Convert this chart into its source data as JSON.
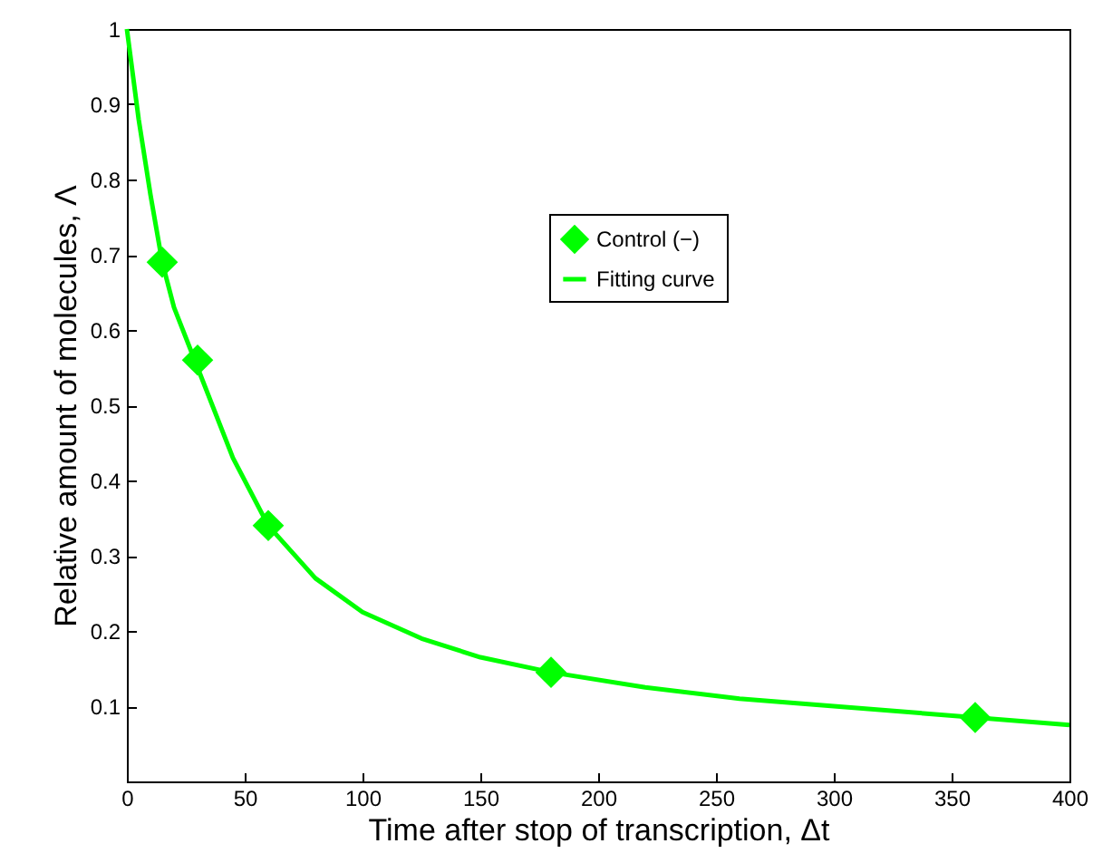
{
  "chart_data": {
    "type": "scatter",
    "xlabel": "Time after stop of transcription, Δt",
    "ylabel": "Relative amount of molecules, Λ",
    "xlim": [
      0,
      400
    ],
    "ylim": [
      0,
      1
    ],
    "xticks": [
      0,
      50,
      100,
      150,
      200,
      250,
      300,
      350,
      400
    ],
    "yticks": [
      0.1,
      0.2,
      0.3,
      0.4,
      0.5,
      0.6,
      0.7,
      0.8,
      0.9,
      1
    ],
    "grid": false,
    "legend": "top right",
    "marker": "diamond",
    "series": [
      {
        "name": "Control (−)",
        "color": "#00ff00",
        "x": [
          15,
          30,
          60,
          180,
          360
        ],
        "values": [
          0.69,
          0.56,
          0.34,
          0.145,
          0.085
        ]
      },
      {
        "name": "Fitting curve",
        "type": "line",
        "color": "#00ff00",
        "line_style": "solid",
        "marker": "none",
        "x": [
          0,
          5,
          10,
          15,
          20,
          30,
          45,
          60,
          80,
          100,
          125,
          150,
          180,
          220,
          260,
          300,
          360,
          400
        ],
        "values": [
          1,
          0.88,
          0.78,
          0.69,
          0.63,
          0.55,
          0.43,
          0.34,
          0.27,
          0.225,
          0.19,
          0.165,
          0.145,
          0.125,
          0.11,
          0.1,
          0.085,
          0.075
        ]
      }
    ]
  }
}
